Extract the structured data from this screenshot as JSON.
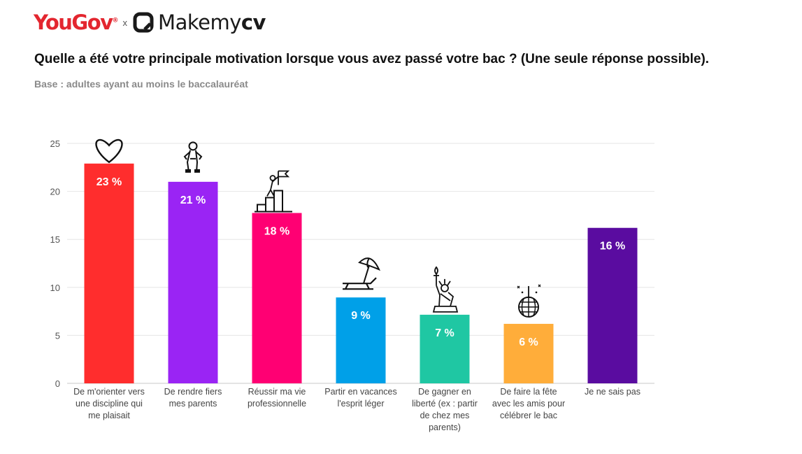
{
  "brand": {
    "yougov_you": "You",
    "yougov_gov": "Gov",
    "yougov_reg": "®",
    "cross": "x",
    "makemycv_a": "Makemy",
    "makemycv_b": "cv"
  },
  "question": "Quelle a été votre principale motivation lorsque vous avez passé votre bac ? (Une seule réponse possible).",
  "base": "Base : adultes ayant au moins le baccalauréat",
  "chart_data": {
    "type": "bar",
    "yticks": [
      0,
      5,
      10,
      15,
      20,
      25
    ],
    "ylim": [
      0,
      25
    ],
    "grid": true,
    "categories": [
      [
        "De m'orienter vers",
        "une discipline qui",
        "me plaisait"
      ],
      [
        "De rendre fiers",
        "mes parents"
      ],
      [
        "Réussir ma vie",
        "professionnelle"
      ],
      [
        "Partir en vacances",
        "l'esprit léger"
      ],
      [
        "De gagner en",
        "liberté (ex : partir",
        "de chez mes",
        "parents)"
      ],
      [
        "De faire la fête",
        "avec les amis pour",
        "célébrer le bac"
      ],
      [
        "Je ne sais pas"
      ]
    ],
    "values": [
      23,
      21,
      18,
      9,
      7,
      6,
      16
    ],
    "bar_values": [
      22.9,
      21,
      17.75,
      8.95,
      7.15,
      6.2,
      16.2
    ],
    "labels": [
      "23 %",
      "21 %",
      "18 %",
      "9 %",
      "7 %",
      "6 %",
      "16 %"
    ],
    "colors": [
      "#ff2d2d",
      "#9a24f4",
      "#ff0073",
      "#00a0e8",
      "#1fc7a3",
      "#ffad3a",
      "#5a0ca0"
    ],
    "icons": [
      "heart-icon",
      "person-pose-icon",
      "climbing-stairs-flag-icon",
      "beach-chair-umbrella-icon",
      "statue-of-liberty-icon",
      "disco-ball-icon",
      ""
    ]
  }
}
